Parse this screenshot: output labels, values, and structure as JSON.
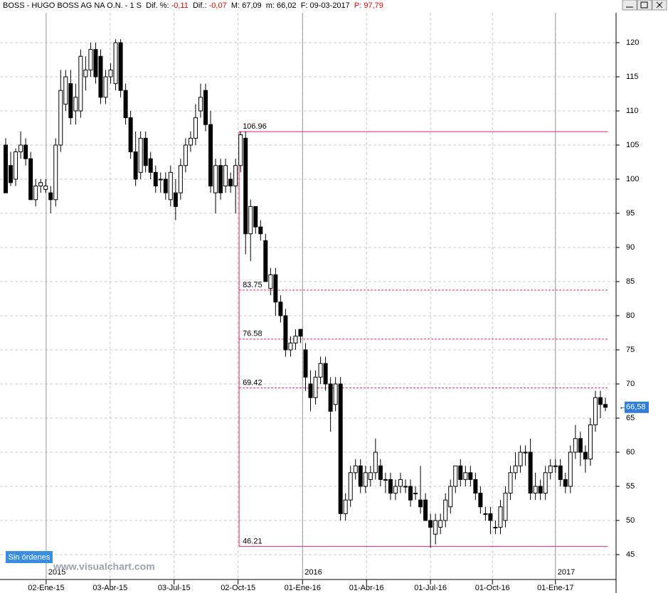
{
  "header": {
    "symbol": "BOSS - HUGO BOSS AG NA O.N. - 1 S",
    "dif_pct_label": "Dif. %:",
    "dif_pct": "-0,11",
    "dif_label": "Dif.:",
    "dif": "-0,07",
    "max": "M: 67,09",
    "min": "m: 66,02",
    "date": "F: 09-03-2017",
    "p_label": "P:",
    "p": "97,79"
  },
  "button": "Sin órdenes",
  "watermark": "www.visualchart.com",
  "chart_data": {
    "type": "candlestick",
    "categories": [
      null,
      null,
      null,
      null,
      null,
      null,
      null,
      null,
      null,
      null,
      null,
      null,
      null,
      null,
      null,
      null,
      null,
      null,
      null,
      null,
      null,
      null,
      null,
      null,
      null,
      null,
      null,
      null,
      null,
      null,
      null,
      null,
      null,
      null,
      null,
      null,
      null,
      null,
      null,
      null,
      null,
      null,
      null,
      null,
      null,
      null,
      null,
      null,
      null,
      null,
      null,
      null,
      null,
      null,
      null,
      null,
      null,
      null,
      null,
      null,
      null,
      null,
      null,
      null,
      null,
      null,
      null,
      null,
      null,
      null,
      null,
      null,
      null,
      null,
      null,
      null,
      null,
      null,
      null,
      null,
      null,
      null,
      null,
      null,
      null,
      null,
      null,
      null,
      null,
      null,
      null,
      null,
      null,
      null,
      null,
      null,
      null,
      null,
      null,
      null,
      null,
      null,
      null,
      null,
      null,
      null,
      null,
      null,
      null,
      null,
      null,
      null,
      null,
      null,
      null,
      null,
      null,
      null,
      null,
      null,
      null
    ],
    "ohlc": [
      [
        105,
        106,
        98,
        98
      ],
      [
        102,
        104,
        99,
        99.5
      ],
      [
        100,
        104.5,
        99,
        104
      ],
      [
        104,
        107,
        103,
        105
      ],
      [
        105,
        106,
        102,
        103
      ],
      [
        103,
        104,
        97,
        97
      ],
      [
        97,
        100,
        96,
        99
      ],
      [
        99,
        100,
        98,
        99.5
      ],
      [
        98.5,
        100,
        98,
        99
      ],
      [
        98,
        99,
        95,
        97
      ],
      [
        97,
        106,
        96,
        105
      ],
      [
        105,
        116,
        104,
        113
      ],
      [
        111,
        116,
        110,
        115
      ],
      [
        114,
        116,
        108,
        109
      ],
      [
        110,
        114,
        108,
        112
      ],
      [
        110,
        119,
        109,
        118
      ],
      [
        115,
        118,
        113,
        116
      ],
      [
        116,
        120,
        115,
        119
      ],
      [
        119,
        120,
        114,
        115
      ],
      [
        118,
        119,
        111,
        112
      ],
      [
        112,
        116,
        111,
        115
      ],
      [
        115,
        117,
        114,
        116
      ],
      [
        114,
        120.5,
        113,
        120
      ],
      [
        120,
        120.5,
        112,
        113
      ],
      [
        113,
        114,
        108,
        109
      ],
      [
        109,
        110,
        103,
        104
      ],
      [
        104,
        107,
        99,
        100
      ],
      [
        101,
        107,
        100,
        106
      ],
      [
        106,
        107,
        101,
        102
      ],
      [
        103,
        104,
        100,
        101
      ],
      [
        101,
        102,
        98,
        99
      ],
      [
        100,
        101,
        98,
        100
      ],
      [
        100,
        101,
        97,
        98
      ],
      [
        97,
        102,
        96,
        101
      ],
      [
        98,
        100,
        94,
        96
      ],
      [
        98,
        103,
        97,
        102
      ],
      [
        102,
        106,
        101,
        105
      ],
      [
        105,
        107,
        104,
        106
      ],
      [
        106,
        111,
        105,
        109
      ],
      [
        110,
        114,
        109,
        112
      ],
      [
        113,
        114,
        107,
        108
      ],
      [
        108,
        110,
        98,
        99
      ],
      [
        98,
        103,
        95,
        102
      ],
      [
        102,
        103,
        97,
        98
      ],
      [
        99,
        103,
        98,
        102
      ],
      [
        100,
        101,
        98,
        99
      ],
      [
        99,
        103,
        95,
        102
      ],
      [
        102,
        106.96,
        101,
        106.5
      ],
      [
        106,
        107,
        89,
        92
      ],
      [
        92,
        97,
        88,
        96
      ],
      [
        96,
        96,
        92,
        93
      ],
      [
        93,
        94,
        91,
        92
      ],
      [
        91,
        92,
        85,
        85
      ],
      [
        84,
        87,
        83,
        86
      ],
      [
        86,
        87,
        80,
        82
      ],
      [
        82,
        83,
        79,
        80
      ],
      [
        80,
        81,
        74,
        75
      ],
      [
        75,
        77,
        74,
        76
      ],
      [
        76,
        78,
        75,
        77
      ],
      [
        78,
        78,
        76,
        77
      ],
      [
        75,
        76,
        69,
        71
      ],
      [
        70,
        72,
        66,
        68
      ],
      [
        68,
        72,
        67,
        71
      ],
      [
        71,
        74,
        70,
        73
      ],
      [
        73,
        74,
        69,
        70
      ],
      [
        70,
        71,
        63,
        66
      ],
      [
        67,
        71,
        66,
        70
      ],
      [
        70,
        71,
        50,
        51
      ],
      [
        51,
        54,
        50,
        53
      ],
      [
        53,
        58,
        52,
        57
      ],
      [
        57,
        59,
        56,
        58
      ],
      [
        58,
        59,
        54,
        55
      ],
      [
        55,
        58,
        54,
        57
      ],
      [
        56,
        58,
        55,
        57
      ],
      [
        57,
        62,
        56,
        60
      ],
      [
        58,
        59,
        55,
        56
      ],
      [
        56,
        57,
        54,
        56
      ],
      [
        56,
        57,
        53,
        54
      ],
      [
        54,
        56,
        53,
        55
      ],
      [
        55,
        57,
        54,
        56
      ],
      [
        55,
        56,
        54,
        55
      ],
      [
        55,
        56,
        52,
        53
      ],
      [
        54,
        55,
        53,
        54
      ],
      [
        53,
        58,
        51,
        52
      ],
      [
        53,
        54,
        50,
        50
      ],
      [
        50,
        51,
        46,
        49
      ],
      [
        48,
        51,
        46.5,
        50
      ],
      [
        49,
        51,
        48,
        50
      ],
      [
        50,
        54,
        49,
        53
      ],
      [
        52,
        56,
        51,
        55
      ],
      [
        55,
        58,
        54,
        58
      ],
      [
        58,
        59,
        55,
        56
      ],
      [
        56,
        58,
        55,
        57
      ],
      [
        57,
        58,
        55,
        56
      ],
      [
        56,
        57,
        53,
        54
      ],
      [
        54,
        55,
        51,
        52
      ],
      [
        51,
        52,
        50,
        51
      ],
      [
        51,
        52,
        48,
        50
      ],
      [
        49,
        50,
        48,
        49
      ],
      [
        49,
        53,
        48,
        52
      ],
      [
        50,
        55,
        49,
        54
      ],
      [
        54,
        58,
        53,
        57
      ],
      [
        57,
        60,
        56,
        58
      ],
      [
        58,
        61,
        57,
        60
      ],
      [
        60,
        61,
        58,
        60
      ],
      [
        60,
        62,
        53,
        54
      ],
      [
        54,
        57,
        53,
        55
      ],
      [
        55,
        56,
        53,
        54
      ],
      [
        54,
        58,
        53,
        57
      ],
      [
        57,
        59,
        56,
        58
      ],
      [
        58,
        59,
        57,
        58
      ],
      [
        58,
        59,
        55,
        56
      ],
      [
        56,
        57,
        54,
        55
      ],
      [
        55,
        61,
        54,
        60
      ],
      [
        60,
        64,
        59,
        62
      ],
      [
        62,
        63,
        58,
        60
      ],
      [
        60,
        61,
        57,
        59
      ],
      [
        59,
        65,
        58,
        64
      ],
      [
        64,
        69,
        63,
        68
      ],
      [
        68,
        69,
        65,
        67
      ],
      [
        67,
        68,
        66,
        66.58
      ]
    ],
    "up_color": "#ffffff",
    "down_color": "#000000",
    "ylim": [
      45,
      120
    ],
    "yticks": [
      45,
      50,
      55,
      60,
      65,
      70,
      75,
      80,
      85,
      90,
      95,
      100,
      105,
      110,
      115,
      120
    ],
    "xticks": [
      {
        "value": 8.1,
        "label": "02-Ene-15"
      },
      {
        "value": 20.9,
        "label": "03-Abr-15"
      },
      {
        "value": 33.7,
        "label": "03-Jul-15"
      },
      {
        "value": 46.5,
        "label": "02-Oct-15"
      },
      {
        "value": 59.4,
        "label": "01-Ene-16"
      },
      {
        "value": 72.2,
        "label": "01-Abr-16"
      },
      {
        "value": 85,
        "label": "01-Jul-16"
      },
      {
        "value": 97.4,
        "label": "01-Oct-16"
      },
      {
        "value": 110,
        "label": "01-Ene-17"
      }
    ],
    "year_ticks": [
      {
        "value": 8.1,
        "label": "2015"
      },
      {
        "value": 59.4,
        "label": "2016"
      },
      {
        "value": 110,
        "label": "2017"
      }
    ],
    "levels": [
      106.96,
      83.75,
      76.58,
      69.42,
      46.21
    ],
    "level_color": "#e0207a",
    "last_price": {
      "value": 66.58,
      "label": "66,58"
    },
    "grid": true
  }
}
